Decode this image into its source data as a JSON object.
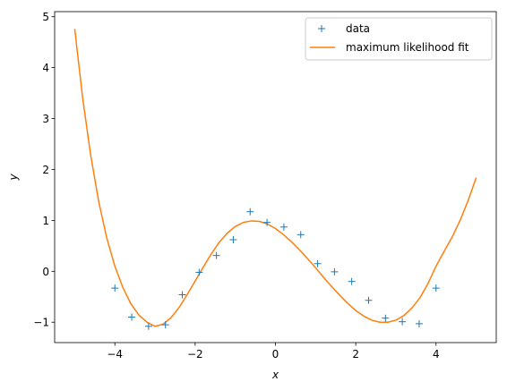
{
  "chart_data": {
    "type": "line",
    "xlabel": "x",
    "ylabel": "y",
    "xlim": [
      -5.5,
      5.5
    ],
    "ylim": [
      -1.4,
      5.1
    ],
    "xticks": [
      -4,
      -2,
      0,
      2,
      4
    ],
    "xtick_labels": [
      "−4",
      "−2",
      "0",
      "2",
      "4"
    ],
    "yticks": [
      -1,
      0,
      1,
      2,
      3,
      4,
      5
    ],
    "ytick_labels": [
      "−1",
      "0",
      "1",
      "2",
      "3",
      "4",
      "5"
    ],
    "grid": false,
    "legend_position": "top-right",
    "series": [
      {
        "name": "data",
        "style": "markers",
        "marker": "+",
        "color": "#1f77b4",
        "x": [
          -4.0,
          -3.58,
          -3.16,
          -2.74,
          -2.32,
          -1.9,
          -1.47,
          -1.05,
          -0.63,
          -0.21,
          0.21,
          0.63,
          1.05,
          1.47,
          1.9,
          2.32,
          2.74,
          3.16,
          3.58,
          4.0
        ],
        "y": [
          -0.33,
          -0.9,
          -1.08,
          -1.05,
          -0.46,
          -0.02,
          0.31,
          0.62,
          1.17,
          0.96,
          0.87,
          0.72,
          0.15,
          -0.01,
          -0.2,
          -0.57,
          -0.92,
          -0.99,
          -1.03,
          -0.33
        ]
      },
      {
        "name": "maximum likelihood fit",
        "style": "line",
        "color": "#ff7f0e",
        "x": [
          -5.0,
          -4.8,
          -4.6,
          -4.4,
          -4.2,
          -4.0,
          -3.8,
          -3.6,
          -3.4,
          -3.2,
          -3.0,
          -2.8,
          -2.6,
          -2.4,
          -2.2,
          -2.0,
          -1.8,
          -1.6,
          -1.4,
          -1.2,
          -1.0,
          -0.8,
          -0.6,
          -0.4,
          -0.2,
          0.0,
          0.2,
          0.4,
          0.6,
          0.8,
          1.0,
          1.2,
          1.4,
          1.6,
          1.8,
          2.0,
          2.2,
          2.4,
          2.6,
          2.8,
          3.0,
          3.2,
          3.4,
          3.6,
          3.8,
          4.0,
          4.2,
          4.4,
          4.6,
          4.8,
          5.0
        ],
        "y": [
          4.76,
          3.39,
          2.27,
          1.36,
          0.65,
          0.1,
          -0.32,
          -0.64,
          -0.86,
          -1.0,
          -1.08,
          -1.04,
          -0.91,
          -0.71,
          -0.46,
          -0.19,
          0.08,
          0.34,
          0.57,
          0.75,
          0.88,
          0.96,
          0.99,
          0.98,
          0.93,
          0.84,
          0.72,
          0.58,
          0.42,
          0.25,
          0.07,
          -0.12,
          -0.3,
          -0.47,
          -0.63,
          -0.77,
          -0.88,
          -0.96,
          -1.0,
          -1.0,
          -0.96,
          -0.87,
          -0.72,
          -0.52,
          -0.24,
          0.1,
          0.39,
          0.67,
          1.0,
          1.39,
          1.84
        ]
      }
    ]
  }
}
